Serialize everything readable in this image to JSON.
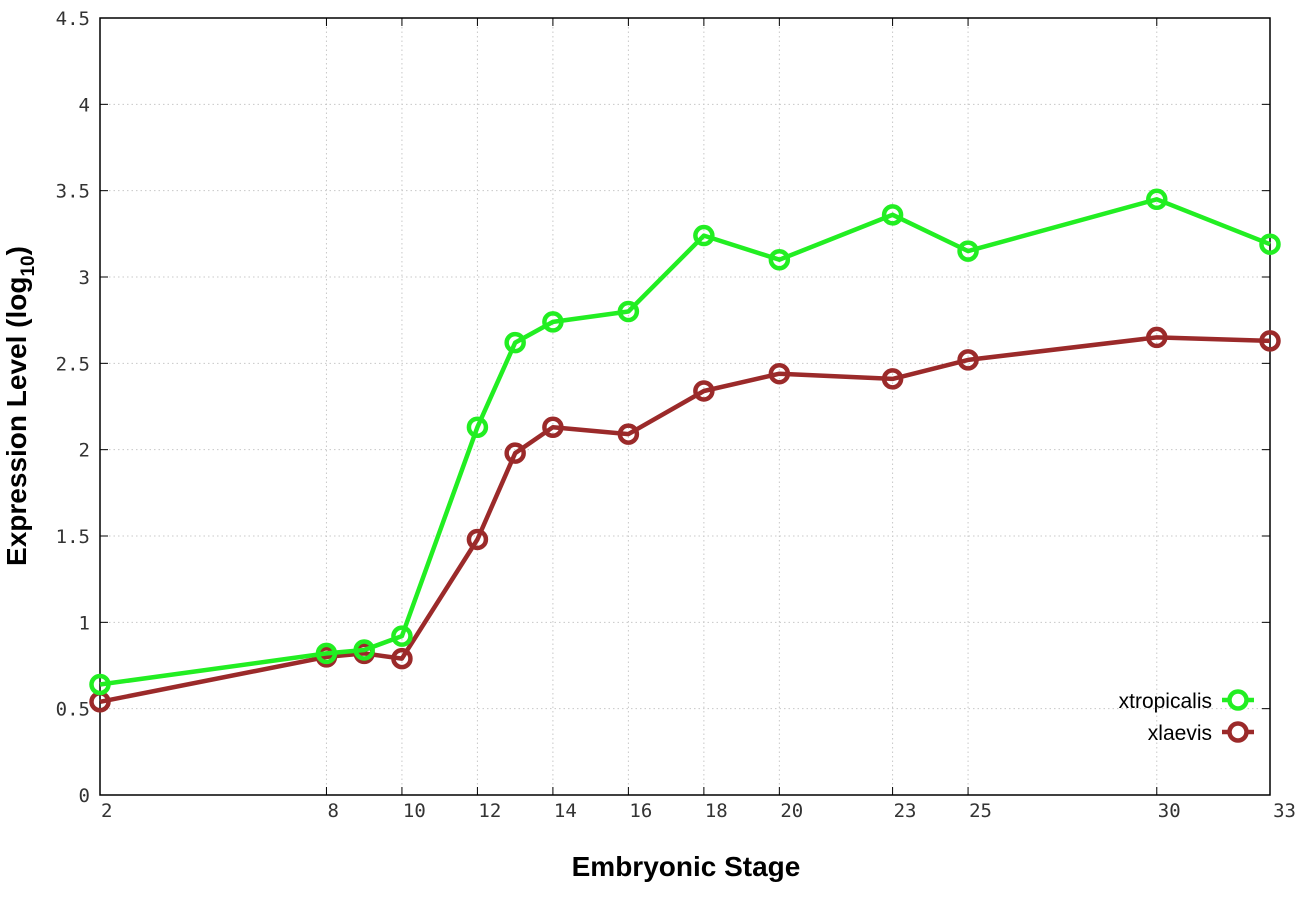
{
  "chart_data": {
    "type": "line",
    "title": "",
    "xlabel": "Embryonic Stage",
    "ylabel": "Expression Level (log10)",
    "ylabel_main": "Expression Level (log",
    "ylabel_sub": "10",
    "ylabel_close": ")",
    "xlim": [
      2,
      33
    ],
    "ylim": [
      0,
      4.5
    ],
    "x_ticks": [
      2,
      8,
      10,
      12,
      14,
      16,
      18,
      20,
      23,
      25,
      30,
      33
    ],
    "y_ticks": [
      "0",
      "0.5",
      "1",
      "1.5",
      "2",
      "2.5",
      "3",
      "3.5",
      "4",
      "4.5"
    ],
    "grid": true,
    "legend_position": "bottom-right",
    "x": [
      2,
      8,
      9,
      10,
      12,
      13,
      14,
      16,
      18,
      20,
      23,
      25,
      30,
      33
    ],
    "series": [
      {
        "name": "xtropicalis",
        "color": "#22ee22",
        "values": [
          0.64,
          0.82,
          0.84,
          0.92,
          2.13,
          2.62,
          2.74,
          2.8,
          3.24,
          3.1,
          3.36,
          3.15,
          3.45,
          3.19
        ]
      },
      {
        "name": "xlaevis",
        "color": "#9b2a2a",
        "values": [
          0.54,
          0.8,
          0.82,
          0.79,
          1.48,
          1.98,
          2.13,
          2.09,
          2.34,
          2.44,
          2.41,
          2.52,
          2.65,
          2.63
        ]
      }
    ]
  }
}
